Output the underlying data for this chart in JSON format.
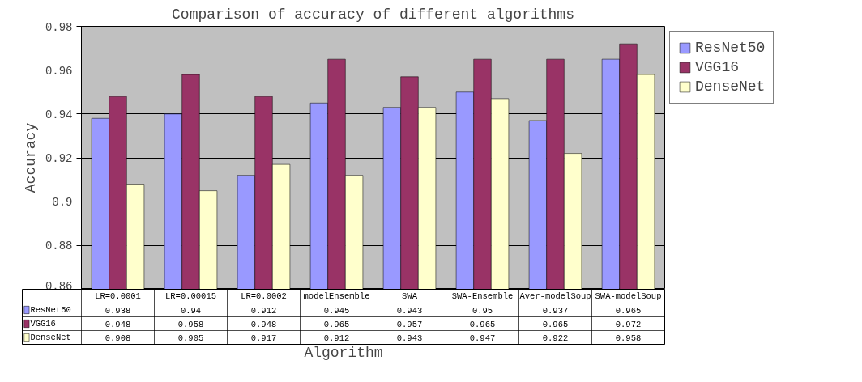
{
  "chart_data": {
    "type": "bar",
    "title": "Comparison of accuracy of different algorithms",
    "xlabel": "Algorithm",
    "ylabel": "Accuracy",
    "categories": [
      "LR=0.0001",
      "LR=0.00015",
      "LR=0.0002",
      "modelEnsemble",
      "SWA",
      "SWA-Ensemble",
      "Aver-modelSoup",
      "SWA-modelSoup"
    ],
    "series": [
      {
        "name": "ResNet50",
        "color": "#9999ff",
        "values": [
          0.938,
          0.94,
          0.912,
          0.945,
          0.943,
          0.95,
          0.937,
          0.965
        ]
      },
      {
        "name": "VGG16",
        "color": "#993366",
        "values": [
          0.948,
          0.958,
          0.948,
          0.965,
          0.957,
          0.965,
          0.965,
          0.972
        ]
      },
      {
        "name": "DenseNet",
        "color": "#ffffcc",
        "values": [
          0.908,
          0.905,
          0.917,
          0.912,
          0.943,
          0.947,
          0.922,
          0.958
        ]
      }
    ],
    "ylim": [
      0.86,
      0.98
    ],
    "yticks": [
      0.86,
      0.88,
      0.9,
      0.92,
      0.94,
      0.96,
      0.98
    ],
    "grid": "y",
    "legend": "right",
    "data_labels": true
  }
}
